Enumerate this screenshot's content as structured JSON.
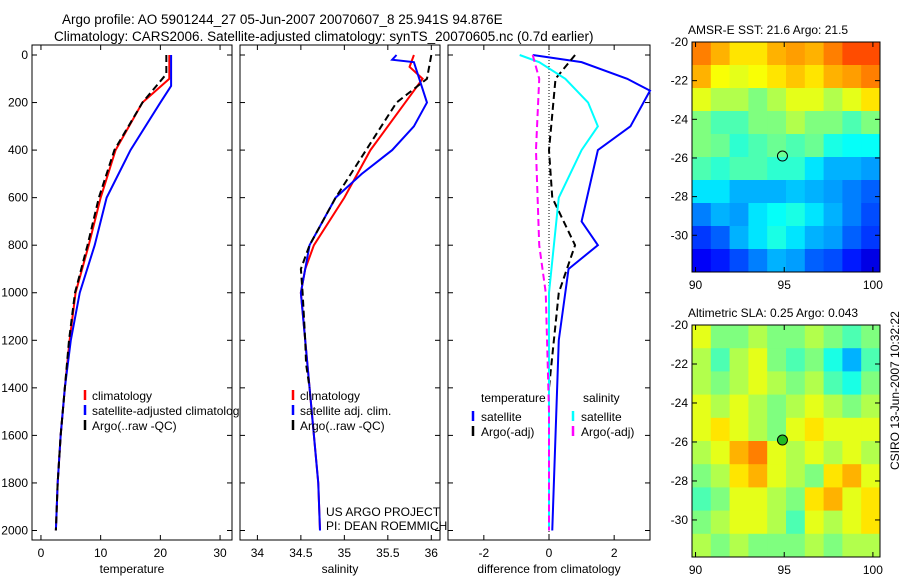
{
  "title_line1": "Argo profile: AO 5901244_27 05-Jun-2007 20070607_8 25.941S 94.876E",
  "title_line2": "Climatology: CARS2006. Satellite-adjusted climatology: synTS_20070605.nc (0.7d earlier)",
  "side_label": "CSIRO 13-Jun-2007 10:32:22",
  "credit_line1": "US ARGO PROJECT",
  "credit_line2": "PI: DEAN ROEMMICH",
  "chart_data": [
    {
      "type": "line",
      "xlabel": "temperature",
      "ylabel": "",
      "xlim": [
        -1.5,
        32
      ],
      "ylim": [
        0,
        2040
      ],
      "yreversed": true,
      "xticks": [
        0,
        10,
        20,
        30
      ],
      "yticks": [
        0,
        200,
        400,
        600,
        800,
        1000,
        1200,
        1400,
        1600,
        1800,
        2000
      ],
      "legend": [
        "climatology",
        "satellite-adjusted climatology",
        "Argo(..raw -QC)"
      ],
      "series": [
        {
          "name": "climatology",
          "color": "#ff0000",
          "depth": [
            0,
            100,
            200,
            400,
            600,
            800,
            1000,
            1200,
            1400,
            1600,
            1800,
            2000
          ],
          "values": [
            21.5,
            21.5,
            17,
            12.5,
            10,
            8,
            5.8,
            4.8,
            4,
            3.3,
            2.8,
            2.5
          ]
        },
        {
          "name": "satellite-adjusted climatology",
          "color": "#0000ff",
          "depth": [
            0,
            130,
            200,
            400,
            600,
            800,
            1000,
            1200,
            1400,
            1600,
            1800,
            2000
          ],
          "values": [
            21.8,
            21.8,
            20,
            15,
            11,
            9,
            6.5,
            5,
            4,
            3.3,
            2.8,
            2.5
          ]
        },
        {
          "name": "Argo(..raw -QC)",
          "color": "#000000",
          "dash": true,
          "depth": [
            0,
            80,
            200,
            400,
            600,
            800,
            1000,
            1200,
            1400,
            1600,
            1800,
            2000
          ],
          "values": [
            21,
            21,
            17,
            12.3,
            9.7,
            7.8,
            5.7,
            4.7,
            4,
            3.3,
            2.8,
            2.5
          ]
        }
      ]
    },
    {
      "type": "line",
      "xlabel": "salinity",
      "xlim": [
        33.8,
        36.1
      ],
      "ylim": [
        0,
        2040
      ],
      "yreversed": true,
      "xticks": [
        34,
        34.5,
        35,
        35.5,
        36
      ],
      "yticks": [
        0,
        200,
        400,
        600,
        800,
        1000,
        1200,
        1400,
        1600,
        1800,
        2000
      ],
      "legend": [
        "climatology",
        "satellite adj. clim.",
        "Argo(..raw -QC)"
      ],
      "series": [
        {
          "name": "climatology",
          "color": "#ff0000",
          "depth": [
            0,
            50,
            100,
            200,
            400,
            600,
            800,
            900,
            1000,
            1200,
            1400,
            1600,
            1800,
            2000
          ],
          "values": [
            35.8,
            35.75,
            35.9,
            35.7,
            35.3,
            35.0,
            34.65,
            34.55,
            34.5,
            34.55,
            34.6,
            34.65,
            34.7,
            34.72
          ]
        },
        {
          "name": "satellite adj. clim.",
          "color": "#0000ff",
          "depth": [
            0,
            20,
            30,
            200,
            300,
            400,
            500,
            600,
            800,
            1000,
            1200,
            1400,
            1600,
            1800,
            2000
          ],
          "values": [
            35.6,
            35.55,
            35.8,
            35.95,
            35.8,
            35.55,
            35.2,
            34.9,
            34.6,
            34.5,
            34.55,
            34.6,
            34.65,
            34.7,
            34.72
          ]
        },
        {
          "name": "Argo(..raw -QC)",
          "color": "#000000",
          "dash": true,
          "depth": [
            0,
            100,
            200,
            400,
            600,
            800,
            900,
            1000,
            1200,
            1300,
            1400
          ],
          "values": [
            36,
            35.95,
            35.6,
            35.25,
            34.9,
            34.6,
            34.5,
            34.52,
            34.55,
            34.56,
            34.6
          ]
        }
      ]
    },
    {
      "type": "line",
      "xlabel": "difference from climatology",
      "xlim": [
        -3.1,
        3.1
      ],
      "ylim": [
        0,
        2040
      ],
      "yreversed": true,
      "xticks": [
        -2,
        0,
        2
      ],
      "yticks": [
        0,
        200,
        400,
        600,
        800,
        1000,
        1200,
        1400,
        1600,
        1800,
        2000
      ],
      "legend_headers": [
        "temperature",
        "salinity"
      ],
      "legend": [
        "satellite",
        "Argo(-adj)",
        "satellite",
        "Argo(-adj)"
      ],
      "series": [
        {
          "name": "temperature satellite",
          "color": "#0000ff",
          "depth": [
            0,
            30,
            100,
            150,
            300,
            400,
            700,
            800,
            900,
            1200,
            2000
          ],
          "values": [
            -0.5,
            1.0,
            2.4,
            3.1,
            2.5,
            1.5,
            1.0,
            1.5,
            0.6,
            0.3,
            0.1
          ]
        },
        {
          "name": "temperature Argo(-adj)",
          "color": "#000000",
          "dash": true,
          "depth": [
            0,
            100,
            400,
            600,
            800,
            1000,
            1400,
            2000
          ],
          "values": [
            0.8,
            0.2,
            0,
            0.1,
            0.8,
            0.3,
            0,
            0
          ]
        },
        {
          "name": "salinity satellite",
          "color": "#00ffff",
          "depth": [
            0,
            30,
            100,
            200,
            300,
            400,
            600,
            1000,
            2000
          ],
          "values": [
            -0.9,
            -0.3,
            0.5,
            1.2,
            1.5,
            1.0,
            0.3,
            0,
            0
          ]
        },
        {
          "name": "salinity Argo(-adj)",
          "color": "#ff00ff",
          "dash": true,
          "depth": [
            0,
            100,
            400,
            800,
            1000,
            1500,
            2000
          ],
          "values": [
            -0.5,
            -0.3,
            -0.4,
            -0.3,
            -0.1,
            0,
            0
          ]
        }
      ]
    },
    {
      "type": "heatmap",
      "title": "AMSR-E SST: 21.6 Argo: 21.5",
      "xlim": [
        89.8,
        100.4
      ],
      "ylim": [
        -31.9,
        -20
      ],
      "xticks": [
        90,
        95,
        100
      ],
      "yticks": [
        -20,
        -22,
        -24,
        -26,
        -28,
        -30
      ],
      "marker": [
        94.9,
        -25.9
      ],
      "marker_color": "none",
      "grid": [
        [
          0.75,
          0.7,
          0.65,
          0.65,
          0.7,
          0.72,
          0.7,
          0.75,
          0.8,
          0.8
        ],
        [
          0.7,
          0.62,
          0.6,
          0.62,
          0.65,
          0.68,
          0.65,
          0.7,
          0.72,
          0.75
        ],
        [
          0.6,
          0.55,
          0.55,
          0.5,
          0.55,
          0.6,
          0.6,
          0.55,
          0.6,
          0.65
        ],
        [
          0.5,
          0.45,
          0.45,
          0.5,
          0.5,
          0.55,
          0.5,
          0.5,
          0.45,
          0.5
        ],
        [
          0.5,
          0.48,
          0.42,
          0.45,
          0.48,
          0.45,
          0.48,
          0.4,
          0.38,
          0.38
        ],
        [
          0.45,
          0.42,
          0.45,
          0.45,
          0.42,
          0.42,
          0.35,
          0.3,
          0.3,
          0.28
        ],
        [
          0.35,
          0.35,
          0.3,
          0.3,
          0.3,
          0.32,
          0.3,
          0.28,
          0.25,
          0.22
        ],
        [
          0.25,
          0.3,
          0.28,
          0.35,
          0.38,
          0.4,
          0.35,
          0.3,
          0.25,
          0.2
        ],
        [
          0.18,
          0.22,
          0.3,
          0.35,
          0.4,
          0.35,
          0.3,
          0.28,
          0.22,
          0.18
        ],
        [
          0.12,
          0.15,
          0.2,
          0.25,
          0.3,
          0.28,
          0.22,
          0.2,
          0.15,
          0.1
        ]
      ]
    },
    {
      "type": "heatmap",
      "title": "Altimetric SLA: 0.25 Argo: 0.043",
      "xlim": [
        89.8,
        100.4
      ],
      "ylim": [
        -31.9,
        -20
      ],
      "xticks": [
        90,
        95,
        100
      ],
      "yticks": [
        -20,
        -22,
        -24,
        -26,
        -28,
        -30
      ],
      "marker": [
        94.9,
        -25.9
      ],
      "marker_color": "#22bb22",
      "grid": [
        [
          0.6,
          0.5,
          0.5,
          0.55,
          0.5,
          0.5,
          0.55,
          0.5,
          0.45,
          0.5
        ],
        [
          0.55,
          0.45,
          0.55,
          0.6,
          0.5,
          0.45,
          0.5,
          0.4,
          0.3,
          0.45
        ],
        [
          0.55,
          0.5,
          0.55,
          0.6,
          0.55,
          0.5,
          0.55,
          0.45,
          0.4,
          0.5
        ],
        [
          0.6,
          0.55,
          0.6,
          0.55,
          0.5,
          0.55,
          0.6,
          0.55,
          0.5,
          0.55
        ],
        [
          0.6,
          0.65,
          0.6,
          0.55,
          0.5,
          0.6,
          0.65,
          0.6,
          0.6,
          0.6
        ],
        [
          0.55,
          0.6,
          0.7,
          0.75,
          0.6,
          0.55,
          0.6,
          0.55,
          0.6,
          0.55
        ],
        [
          0.5,
          0.55,
          0.65,
          0.7,
          0.6,
          0.55,
          0.5,
          0.65,
          0.7,
          0.6
        ],
        [
          0.45,
          0.5,
          0.6,
          0.6,
          0.55,
          0.5,
          0.65,
          0.7,
          0.6,
          0.65
        ],
        [
          0.5,
          0.55,
          0.6,
          0.6,
          0.55,
          0.45,
          0.6,
          0.55,
          0.6,
          0.65
        ],
        [
          0.55,
          0.5,
          0.55,
          0.5,
          0.5,
          0.5,
          0.55,
          0.5,
          0.55,
          0.55
        ]
      ]
    }
  ]
}
